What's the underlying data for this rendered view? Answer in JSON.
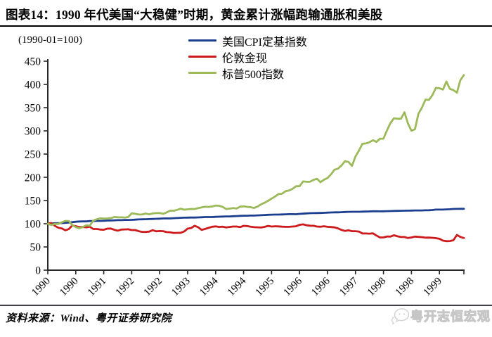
{
  "page": {
    "title": "图表14：1990 年代美国“大稳健”时期，黄金累计涨幅跑输通胀和美股",
    "source": "资料来源：Wind、粤开证券研究院",
    "watermark": "粤开志恒宏观"
  },
  "chart_data": {
    "type": "line",
    "title": "1990 年代美国“大稳健”时期，黄金累计涨幅跑输通胀和美股",
    "axis_note": "(1990-01=100)",
    "x_start": "1990-01",
    "x_end": "1999-12",
    "x_unit": "month",
    "grid": false,
    "legend_position": "top-center",
    "ylim": [
      0,
      450
    ],
    "y_ticks": [
      0,
      50,
      100,
      150,
      200,
      250,
      300,
      350,
      400,
      450
    ],
    "x_tick_months": [
      0,
      8,
      16,
      24,
      32,
      40,
      48,
      56,
      64,
      72,
      80,
      88,
      96,
      104,
      112
    ],
    "x_tick_labels": [
      "1990",
      "1990",
      "1991",
      "1992",
      "1992",
      "1993",
      "1994",
      "1994",
      "1995",
      "1996",
      "1996",
      "1997",
      "1998",
      "1998",
      "1999"
    ],
    "axis_color": "#262626",
    "series": [
      {
        "key": "cpi",
        "name": "美国CPI定基指数",
        "color": "#1c3e8e",
        "values": [
          100,
          100.5,
          101,
          101.2,
          101.4,
          102,
          102.4,
          103.3,
          104.2,
          104.8,
          105,
          105,
          105.7,
          105.8,
          106,
          106.1,
          106.4,
          106.8,
          106.9,
          107.2,
          107.7,
          107.8,
          108.2,
          108.2,
          108.4,
          108.8,
          109.3,
          109.5,
          109.7,
          110,
          110.3,
          110.6,
          110.9,
          111.3,
          111.5,
          111.4,
          111.9,
          112.3,
          112.7,
          113,
          113.2,
          113.3,
          113.3,
          113.7,
          113.9,
          114.4,
          114.4,
          114.4,
          114.8,
          115.1,
          115.5,
          115.7,
          115.8,
          116.2,
          116.5,
          117,
          117.3,
          117.3,
          117.5,
          117.5,
          118,
          118.4,
          118.8,
          119.2,
          119.5,
          119.7,
          119.7,
          120,
          120.3,
          120.6,
          120.6,
          120.5,
          121.2,
          121.6,
          122.2,
          122.7,
          122.9,
          123,
          123.2,
          123.5,
          123.9,
          124.3,
          124.5,
          124.5,
          124.9,
          125.3,
          125.6,
          125.7,
          125.7,
          125.8,
          126,
          126.2,
          126.5,
          126.8,
          126.8,
          126.6,
          126.8,
          127.1,
          127.3,
          127.6,
          127.8,
          127.9,
          128.1,
          128.2,
          128.4,
          128.7,
          128.7,
          128.6,
          129,
          129.1,
          129.5,
          130.5,
          130.5,
          130.5,
          130.9,
          131.2,
          131.8,
          132,
          132.1,
          132.1
        ]
      },
      {
        "key": "gold",
        "name": "伦敦金现",
        "color": "#cc1a1d",
        "values": [
          100,
          101.6,
          95.8,
          91.3,
          90,
          85.9,
          88.4,
          96.3,
          94.7,
          92.8,
          93,
          92.2,
          93.5,
          88.7,
          88.6,
          87.4,
          87,
          89.4,
          89.7,
          86.9,
          85,
          87.5,
          87.8,
          88,
          86.4,
          86.3,
          84,
          82.5,
          82.2,
          83.1,
          86.1,
          83.6,
          84.3,
          84,
          81.9,
          81.6,
          80.2,
          80.3,
          80.5,
          83.4,
          89.5,
          90.7,
          95.6,
          92.4,
          86.6,
          88.8,
          91.1,
          93.5,
          94.3,
          93.1,
          93.7,
          92,
          93,
          94,
          94,
          92.8,
          95.5,
          95,
          93.7,
          92.5,
          92.3,
          91.8,
          93.2,
          95.3,
          93.9,
          94.5,
          94.2,
          93.6,
          93.4,
          93.4,
          94,
          94.5,
          97.6,
          98.7,
          96.6,
          95.8,
          95.6,
          94,
          93.5,
          94.5,
          93.4,
          92.9,
          92.1,
          90,
          86.6,
          84.5,
          85.9,
          84,
          83.9,
          83.1,
          79,
          79,
          78.7,
          79.2,
          74.6,
          70.4,
          70.5,
          72.5,
          72.2,
          75.2,
          72.9,
          71.3,
          71.4,
          69.3,
          70.5,
          72.2,
          71.7,
          71.1,
          70,
          70.1,
          69.7,
          68.9,
          67.5,
          63.7,
          62.4,
          62.7,
          64.5,
          75.8,
          71.5,
          69.2
        ]
      },
      {
        "key": "sp500",
        "name": "标普500指数",
        "color": "#9cba59",
        "values": [
          100,
          97.2,
          99.6,
          99.5,
          103,
          106,
          105.9,
          97.3,
          92.8,
          90.3,
          92.7,
          96.7,
          95.7,
          106.6,
          109.5,
          111.7,
          111.2,
          111.3,
          111.8,
          114.5,
          113.9,
          113.8,
          113.5,
          114.3,
          122.4,
          121.4,
          119.8,
          119.8,
          122,
          120.1,
          122.1,
          122.9,
          123.1,
          121.3,
          124.4,
          128.1,
          128,
          129.9,
          132.4,
          130.3,
          131,
          131.8,
          131.6,
          133.6,
          135.1,
          136.5,
          136.2,
          137.1,
          139.1,
          138.7,
          136.4,
          131.6,
          132.6,
          133.8,
          132.8,
          136.6,
          137.4,
          136.4,
          135.6,
          133.9,
          136.9,
          141.8,
          145.1,
          149.4,
          154.1,
          158.6,
          163.9,
          164.5,
          170.2,
          171.5,
          175.2,
          180.8,
          180.7,
          191.1,
          190.3,
          190.4,
          194.5,
          196.6,
          189.4,
          194.9,
          198.5,
          206.3,
          216.4,
          218.6,
          225.4,
          234.8,
          233,
          224.7,
          245,
          257.8,
          272.2,
          272.9,
          275.6,
          279.8,
          276.2,
          283.1,
          283.4,
          301.1,
          316.7,
          327.1,
          326,
          326,
          340.2,
          316.1,
          300.2,
          303.7,
          336.6,
          350,
          367.3,
          366.7,
          377,
          392.6,
          391.8,
          389,
          406.2,
          390.5,
          387.7,
          382.4,
          409.2,
          420.2
        ]
      }
    ]
  }
}
